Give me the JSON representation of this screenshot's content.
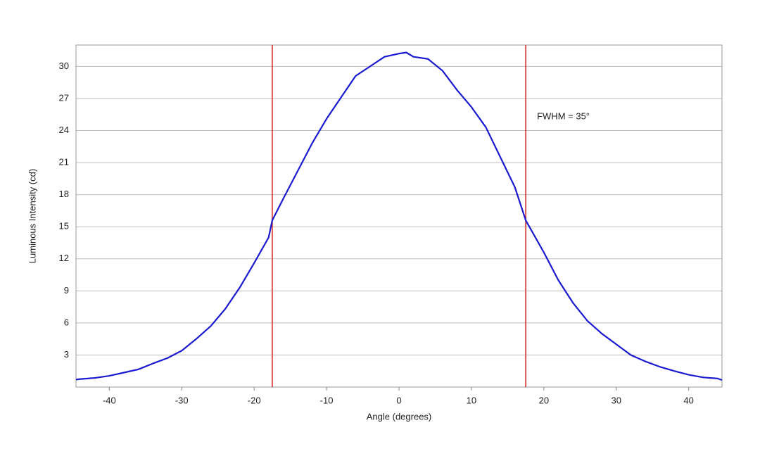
{
  "chart_data": {
    "type": "line",
    "x_label": "Angle (degrees)",
    "y_label": "Luminous Intensity (cd)",
    "annotation": "FWHM = 35°",
    "x": [
      -44.6,
      -44,
      -42,
      -40,
      -38,
      -36,
      -34,
      -32,
      -30,
      -28,
      -26,
      -24,
      -22,
      -20,
      -18,
      -17.5,
      -16,
      -14,
      -12,
      -10,
      -8,
      -6,
      -4,
      -2,
      0,
      1,
      2,
      4,
      6,
      8,
      10,
      12,
      14,
      16,
      17.5,
      20,
      22,
      24,
      26,
      28,
      30,
      32,
      34,
      36,
      38,
      40,
      42,
      44,
      44.6
    ],
    "values": [
      0.7,
      0.75,
      0.85,
      1.05,
      1.35,
      1.65,
      2.2,
      2.7,
      3.4,
      4.5,
      5.7,
      7.3,
      9.3,
      11.6,
      14.0,
      15.6,
      17.6,
      20.2,
      22.8,
      25.1,
      27.1,
      29.1,
      30.0,
      30.9,
      31.2,
      31.3,
      30.9,
      30.7,
      29.6,
      27.8,
      26.2,
      24.3,
      21.5,
      18.7,
      15.6,
      12.6,
      10.0,
      7.9,
      6.2,
      5.0,
      4.0,
      3.0,
      2.4,
      1.9,
      1.5,
      1.15,
      0.9,
      0.8,
      0.65
    ],
    "color": "#1a1ad0",
    "vlines": [
      -17.5,
      17.5
    ],
    "vline_color": "#d42020",
    "xlim": [
      -44.6,
      44.6
    ],
    "ylim": [
      0,
      32
    ],
    "xticks": [
      -40,
      -30,
      -20,
      -10,
      0,
      10,
      20,
      30,
      40
    ],
    "yticks": [
      3,
      6,
      9,
      12,
      15,
      18,
      21,
      24,
      27,
      30
    ],
    "grid": true
  }
}
